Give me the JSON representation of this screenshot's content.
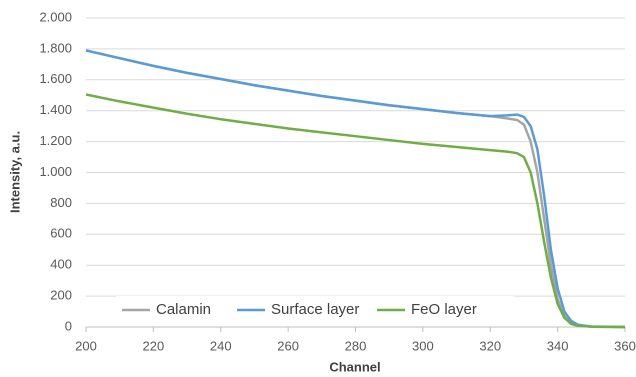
{
  "chart_data": {
    "type": "line",
    "x_label": "Channel",
    "y_label": "Intensity, a.u.",
    "x": [
      200,
      210,
      220,
      230,
      240,
      250,
      260,
      270,
      280,
      290,
      300,
      310,
      320,
      325,
      328,
      330,
      332,
      334,
      336,
      338,
      340,
      342,
      344,
      346,
      350,
      360
    ],
    "series": [
      {
        "name": "Calamin",
        "color": "#a5a5a5",
        "values": [
          1790,
          1740,
          1690,
          1645,
          1605,
          1565,
          1530,
          1495,
          1465,
          1435,
          1410,
          1385,
          1365,
          1350,
          1340,
          1310,
          1200,
          1000,
          700,
          400,
          180,
          70,
          25,
          10,
          2,
          0
        ]
      },
      {
        "name": "Surface layer",
        "color": "#5b9bd5",
        "values": [
          1790,
          1740,
          1690,
          1645,
          1605,
          1565,
          1530,
          1495,
          1465,
          1435,
          1410,
          1385,
          1365,
          1370,
          1375,
          1360,
          1300,
          1150,
          850,
          500,
          250,
          100,
          40,
          15,
          3,
          0
        ]
      },
      {
        "name": "FeO layer",
        "color": "#70ad47",
        "values": [
          1505,
          1460,
          1420,
          1380,
          1345,
          1315,
          1285,
          1260,
          1235,
          1210,
          1185,
          1165,
          1145,
          1135,
          1125,
          1100,
          1000,
          800,
          550,
          320,
          150,
          60,
          20,
          8,
          2,
          0
        ]
      }
    ],
    "xlim": [
      200,
      360
    ],
    "xticks": [
      200,
      220,
      240,
      260,
      280,
      300,
      320,
      340,
      360
    ],
    "ylim": [
      0,
      2000
    ],
    "yticks": [
      0,
      200,
      400,
      600,
      800,
      {
        "value": 1000,
        "label": "1.000"
      },
      {
        "value": 1200,
        "label": "1.200"
      },
      {
        "value": 1400,
        "label": "1.400"
      },
      {
        "value": 1600,
        "label": "1.600"
      },
      {
        "value": 1800,
        "label": "1.800"
      },
      {
        "value": 2000,
        "label": "2.000"
      }
    ],
    "grid": true,
    "legend": "lower left"
  }
}
